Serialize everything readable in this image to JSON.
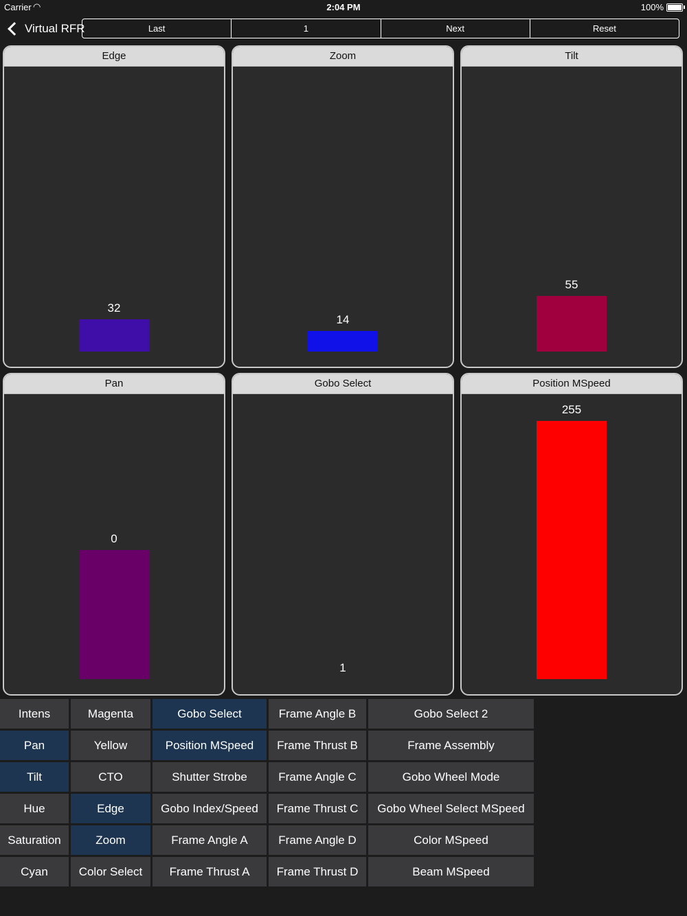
{
  "status": {
    "carrier": "Carrier",
    "time": "2:04 PM",
    "battery": "100%"
  },
  "nav": {
    "back_label": "Virtual RFR",
    "segments": [
      "Last",
      "1",
      "Next",
      "Reset"
    ]
  },
  "panels": [
    {
      "title": "Edge",
      "value": 32,
      "display": "32",
      "color": "#3f0ea8"
    },
    {
      "title": "Zoom",
      "value": 14,
      "display": "14",
      "color": "#1010e8"
    },
    {
      "title": "Tilt",
      "value": 55,
      "display": "55",
      "color": "#a0003e"
    },
    {
      "title": "Pan",
      "value": 0,
      "display": "0",
      "color": "#680068"
    },
    {
      "title": "Gobo Select",
      "value": 1,
      "display": "1",
      "color": "#2b2b2c"
    },
    {
      "title": "Position MSpeed",
      "value": 255,
      "display": "255",
      "color": "#ff0000"
    }
  ],
  "params": {
    "col1": [
      {
        "label": "Intens",
        "selected": false
      },
      {
        "label": "Pan",
        "selected": true
      },
      {
        "label": "Tilt",
        "selected": true
      },
      {
        "label": "Hue",
        "selected": false
      },
      {
        "label": "Saturation",
        "selected": false
      },
      {
        "label": "Cyan",
        "selected": false
      }
    ],
    "col2": [
      {
        "label": "Magenta",
        "selected": false
      },
      {
        "label": "Yellow",
        "selected": false
      },
      {
        "label": "CTO",
        "selected": false
      },
      {
        "label": "Edge",
        "selected": true
      },
      {
        "label": "Zoom",
        "selected": true
      },
      {
        "label": "Color Select",
        "selected": false
      }
    ],
    "col3": [
      {
        "label": "Gobo Select",
        "selected": true
      },
      {
        "label": "Position MSpeed",
        "selected": true
      },
      {
        "label": "Shutter Strobe",
        "selected": false
      },
      {
        "label": "Gobo Index/Speed",
        "selected": false
      },
      {
        "label": "Frame Angle A",
        "selected": false
      },
      {
        "label": "Frame Thrust A",
        "selected": false
      }
    ],
    "col4": [
      {
        "label": "Frame Angle B",
        "selected": false
      },
      {
        "label": "Frame Thrust B",
        "selected": false
      },
      {
        "label": "Frame Angle C",
        "selected": false
      },
      {
        "label": "Frame Thrust C",
        "selected": false
      },
      {
        "label": "Frame Angle D",
        "selected": false
      },
      {
        "label": "Frame Thrust D",
        "selected": false
      }
    ],
    "col5": [
      {
        "label": "Gobo Select 2",
        "selected": false
      },
      {
        "label": "Frame Assembly",
        "selected": false
      },
      {
        "label": "Gobo Wheel Mode",
        "selected": false
      },
      {
        "label": "Gobo Wheel Select MSpeed",
        "selected": false
      },
      {
        "label": "Color MSpeed",
        "selected": false
      },
      {
        "label": "Beam MSpeed",
        "selected": false
      }
    ]
  }
}
